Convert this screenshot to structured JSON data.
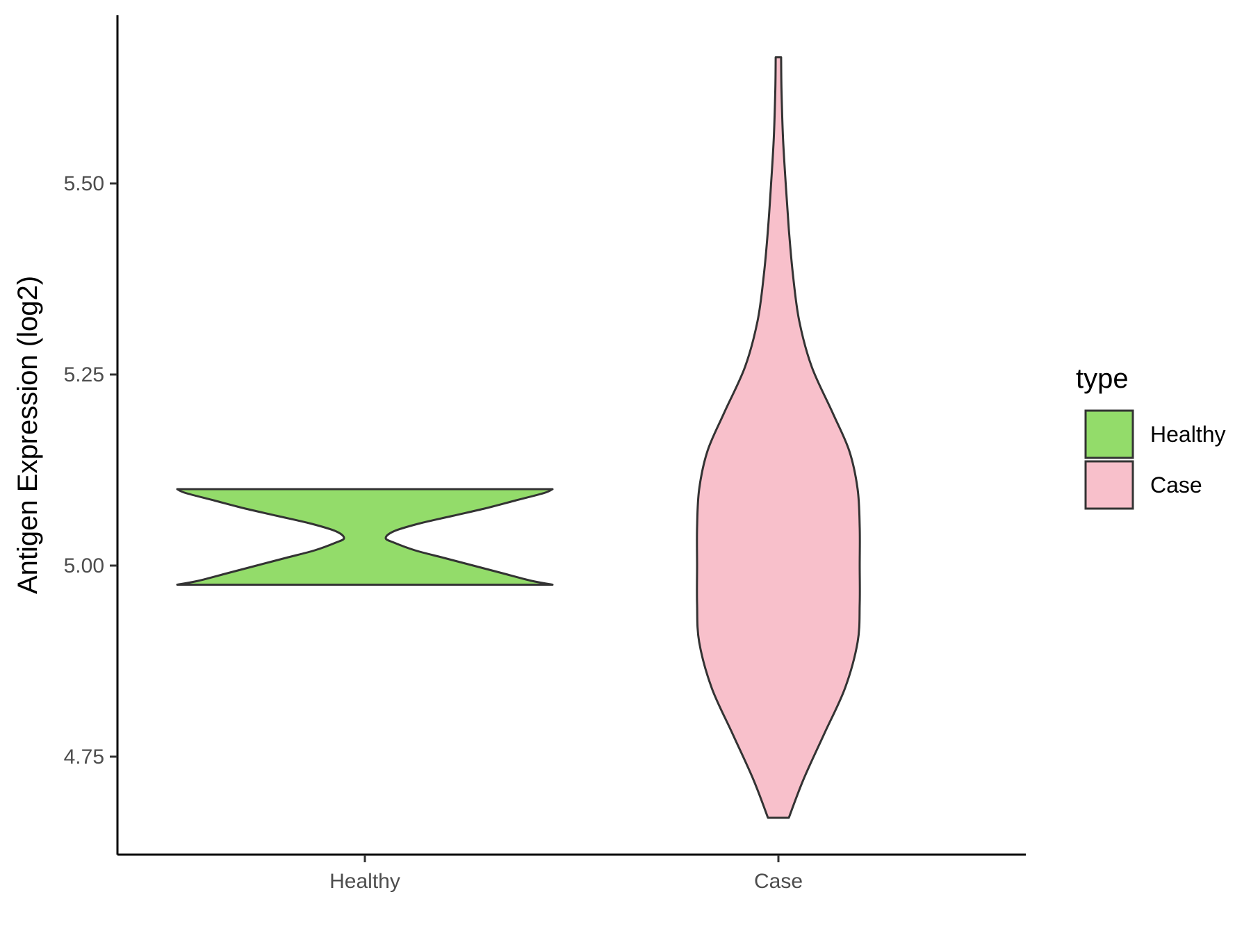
{
  "chart_data": {
    "type": "violin",
    "ylabel": "Antigen Expression (log2)",
    "xlabel": "",
    "categories": [
      "Healthy",
      "Case"
    ],
    "y_ticks": [
      {
        "value": 4.75,
        "label": "4.75"
      },
      {
        "value": 5.0,
        "label": "5.00"
      },
      {
        "value": 5.25,
        "label": "5.25"
      },
      {
        "value": 5.5,
        "label": "5.50"
      }
    ],
    "ylim": [
      4.62,
      5.72
    ],
    "grid": false,
    "legend": {
      "title": "type",
      "placement": "right",
      "entries": [
        {
          "label": "Healthy",
          "color": "#93DC6A"
        },
        {
          "label": "Case",
          "color": "#F8C0CB"
        }
      ]
    },
    "series": [
      {
        "name": "Healthy",
        "color": "#93DC6A",
        "profile": [
          [
            4.975,
            0.9
          ],
          [
            4.98,
            0.8
          ],
          [
            4.99,
            0.66
          ],
          [
            5.0,
            0.52
          ],
          [
            5.01,
            0.38
          ],
          [
            5.02,
            0.24
          ],
          [
            5.03,
            0.14
          ],
          [
            5.036,
            0.1
          ],
          [
            5.045,
            0.14
          ],
          [
            5.055,
            0.26
          ],
          [
            5.065,
            0.42
          ],
          [
            5.075,
            0.58
          ],
          [
            5.085,
            0.72
          ],
          [
            5.095,
            0.86
          ],
          [
            5.1,
            0.9
          ]
        ]
      },
      {
        "name": "Case",
        "color": "#F8C0CB",
        "profile": [
          [
            4.67,
            0.05
          ],
          [
            4.72,
            0.12
          ],
          [
            4.78,
            0.22
          ],
          [
            4.84,
            0.32
          ],
          [
            4.9,
            0.38
          ],
          [
            4.95,
            0.39
          ],
          [
            5.0,
            0.39
          ],
          [
            5.05,
            0.39
          ],
          [
            5.1,
            0.38
          ],
          [
            5.15,
            0.34
          ],
          [
            5.2,
            0.26
          ],
          [
            5.26,
            0.16
          ],
          [
            5.32,
            0.1
          ],
          [
            5.38,
            0.07
          ],
          [
            5.44,
            0.05
          ],
          [
            5.5,
            0.035
          ],
          [
            5.56,
            0.022
          ],
          [
            5.62,
            0.015
          ],
          [
            5.665,
            0.013
          ]
        ]
      }
    ]
  }
}
